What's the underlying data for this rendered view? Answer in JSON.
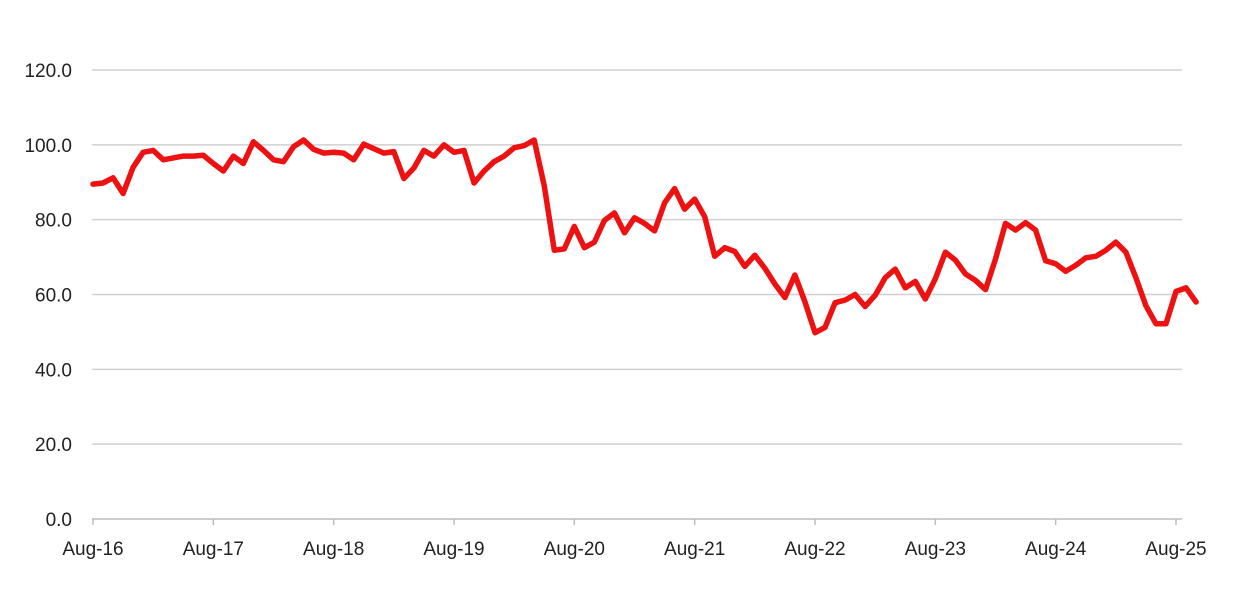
{
  "chart_data": {
    "type": "line",
    "title": "",
    "xlabel": "",
    "ylabel": "",
    "ylim": [
      0,
      120
    ],
    "grid": true,
    "legend": "none",
    "line_color": "#ee1111",
    "y_ticks": [
      "0.0",
      "20.0",
      "40.0",
      "60.0",
      "80.0",
      "100.0",
      "120.0"
    ],
    "x_ticks": [
      "Aug-16",
      "Aug-17",
      "Aug-18",
      "Aug-19",
      "Aug-20",
      "Aug-21",
      "Aug-22",
      "Aug-23",
      "Aug-24",
      "Aug-25"
    ],
    "x_tick_months": [
      0,
      12,
      24,
      36,
      48,
      60,
      72,
      84,
      96,
      108
    ],
    "x_start": "Aug-16",
    "x_end": "Aug-25",
    "series": [
      {
        "values": [
          89.5,
          89.8,
          91.2,
          87.0,
          94.0,
          98.0,
          98.5,
          96.0,
          96.5,
          97.0,
          97.0,
          97.2,
          95.0,
          93.0,
          97.0,
          95.0,
          100.8,
          98.5,
          96.0,
          95.5,
          99.5,
          101.3,
          98.8,
          97.8,
          98.0,
          97.8,
          96.0,
          100.2,
          99.0,
          97.8,
          98.2,
          91.0,
          93.8,
          98.5,
          97.0,
          100.0,
          98.0,
          98.5,
          89.8,
          93.0,
          95.5,
          97.0,
          99.2,
          99.8,
          101.3,
          89.0,
          71.8,
          72.2,
          78.2,
          72.5,
          74.0,
          79.8,
          81.8,
          76.5,
          80.5,
          79.0,
          77.0,
          84.5,
          88.3,
          82.8,
          85.5,
          80.8,
          70.2,
          72.5,
          71.5,
          67.5,
          70.5,
          67.0,
          62.8,
          59.2,
          65.2,
          58.0,
          49.8,
          51.2,
          57.8,
          58.5,
          60.0,
          56.8,
          59.8,
          64.5,
          66.8,
          61.8,
          63.5,
          58.8,
          64.2,
          71.3,
          69.2,
          65.5,
          63.8,
          61.3,
          69.5,
          79.0,
          77.2,
          79.2,
          77.2,
          69.0,
          68.2,
          66.2,
          67.8,
          69.8,
          70.2,
          71.8,
          74.0,
          71.3,
          64.5,
          57.0,
          52.2,
          52.2,
          60.8,
          61.8,
          58.0
        ]
      }
    ]
  }
}
